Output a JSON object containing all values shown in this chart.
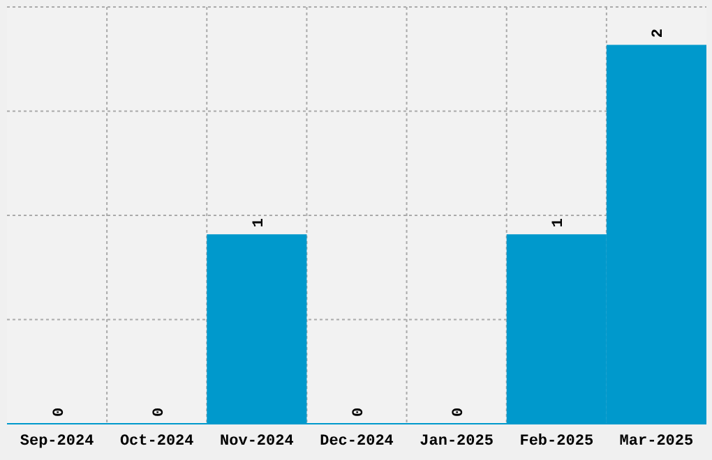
{
  "chart_data": {
    "type": "bar",
    "categories": [
      "Sep-2024",
      "Oct-2024",
      "Nov-2024",
      "Dec-2024",
      "Jan-2025",
      "Feb-2025",
      "Mar-2025"
    ],
    "values": [
      0,
      0,
      1,
      0,
      0,
      1,
      2
    ],
    "color": "#0099cc",
    "ylim": [
      0,
      2.2
    ],
    "yticks": [
      {
        "value": 0,
        "label": null
      },
      {
        "value": 0.55,
        "label": null
      },
      {
        "value": 1.1,
        "label": null
      },
      {
        "value": 1.65,
        "label": null
      },
      {
        "value": 2.2,
        "label": null
      }
    ],
    "grid": true,
    "data_labels": true,
    "tick_labels": "x"
  }
}
